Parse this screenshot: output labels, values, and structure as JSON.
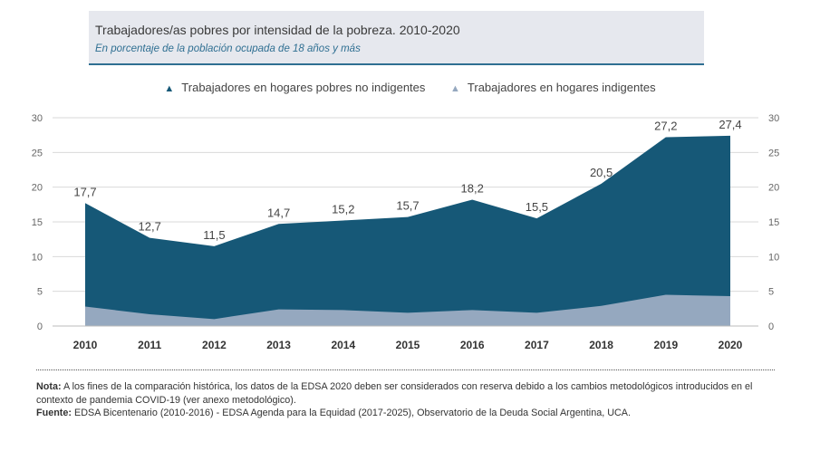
{
  "header": {
    "title": "Trabajadores/as pobres por intensidad de la pobreza. 2010-2020",
    "subtitle": "En porcentaje de la población ocupada de 18 años y más"
  },
  "colors": {
    "series_1": "#165877",
    "series_2": "#95a8bf",
    "grid": "#d9d9d9",
    "title_bg": "#e6e8ee",
    "accent": "#2f6f92"
  },
  "chart_data": {
    "type": "area",
    "stacked": false,
    "x": [
      "2010",
      "2011",
      "2012",
      "2013",
      "2014",
      "2015",
      "2016",
      "2017",
      "2018",
      "2019",
      "2020"
    ],
    "ylim": [
      0,
      30
    ],
    "yticks": [
      0,
      5,
      10,
      15,
      20,
      25,
      30
    ],
    "grid": true,
    "dual_y_axis_labels": true,
    "legend_position": "top-center",
    "series": [
      {
        "name": "Trabajadores en hogares pobres no indigentes",
        "values": [
          17.7,
          12.7,
          11.5,
          14.7,
          15.2,
          15.7,
          18.2,
          15.5,
          20.5,
          27.2,
          27.4
        ],
        "labels": [
          "17,7",
          "12,7",
          "11,5",
          "14,7",
          "15,2",
          "15,7",
          "18,2",
          "15,5",
          "20,5",
          "27,2",
          "27,4"
        ],
        "color": "#165877"
      },
      {
        "name": "Trabajadores en hogares indigentes",
        "values": [
          2.8,
          1.7,
          1.0,
          2.4,
          2.3,
          1.9,
          2.3,
          1.9,
          2.9,
          4.5,
          4.3
        ],
        "color": "#95a8bf"
      }
    ]
  },
  "notes": {
    "nota_label": "Nota:",
    "nota_text": " A los fines de la comparación histórica, los datos de la EDSA 2020 deben ser considerados con reserva debido a los cambios metodológicos introducidos en el contexto de pandemia COVID-19 (ver anexo metodológico).",
    "fuente_label": "Fuente:",
    "fuente_text": " EDSA Bicentenario (2010-2016) - EDSA Agenda para la Equidad (2017-2025), Observatorio de la Deuda Social Argentina, UCA."
  }
}
